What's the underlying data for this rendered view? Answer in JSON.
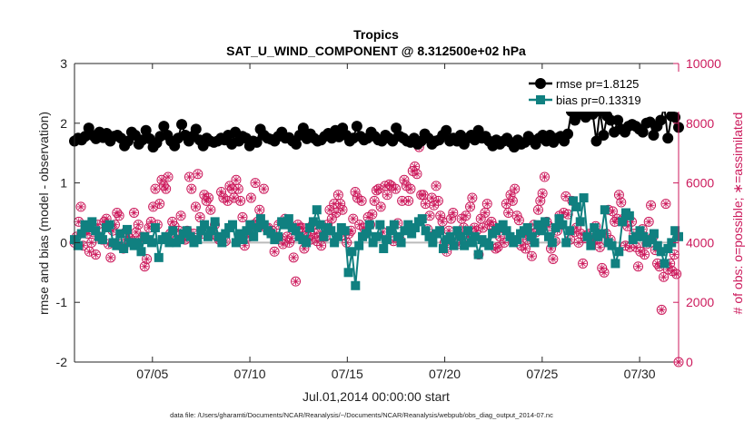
{
  "chart_data": {
    "type": "line",
    "title": "Tropics",
    "subtitle": "SAT_U_WIND_COMPONENT @ 8.312500e+02 hPa",
    "xlabel": "Jul.01,2014 00:00:00 start",
    "ylabel_left": "rmse and bias (model - observation)",
    "ylabel_right": "# of obs: o=possible; ∗=assimilated",
    "footer": "data file: /Users/gharamti/Documents/NCAR/Reanalysis/~/Documents/NCAR/Reanalysis/webpub/obs_diag_output_2014-07.nc",
    "xlim": [
      1,
      32
    ],
    "ylim_left": [
      -2,
      3
    ],
    "ylim_right": [
      0,
      10000
    ],
    "x_ticks": [
      5,
      10,
      15,
      20,
      25,
      30
    ],
    "x_tick_labels": [
      "07/05",
      "07/10",
      "07/15",
      "07/20",
      "07/25",
      "07/30"
    ],
    "y_ticks_left": [
      -2,
      -1,
      0,
      1,
      2,
      3
    ],
    "y_tick_labels_left": [
      "-2",
      "-1",
      "0",
      "1",
      "2",
      "3"
    ],
    "y_ticks_right": [
      0,
      2000,
      4000,
      6000,
      8000,
      10000
    ],
    "y_tick_labels_right": [
      "0",
      "2000",
      "4000",
      "6000",
      "8000",
      "10000"
    ],
    "zero_line": 0,
    "legend": {
      "position": "top-right",
      "entries": [
        "rmse pr=1.8125",
        "bias pr=0.13319"
      ]
    },
    "colors": {
      "rmse": "#000000",
      "bias": "#108080",
      "obs": "#cc1a5c",
      "zero": "#bbbbbb"
    },
    "series": [
      {
        "name": "rmse pr=1.8125",
        "marker": "circle",
        "values": [
          1.7,
          1.75,
          1.72,
          1.78,
          1.92,
          1.8,
          1.74,
          1.85,
          1.76,
          1.83,
          1.7,
          1.78,
          1.8,
          1.75,
          1.62,
          1.7,
          1.85,
          1.8,
          1.65,
          1.72,
          1.88,
          1.74,
          1.6,
          1.67,
          1.78,
          1.95,
          1.8,
          1.7,
          1.62,
          1.75,
          1.98,
          1.8,
          1.7,
          1.78,
          1.9,
          1.72,
          1.62,
          1.75,
          1.7,
          1.68,
          1.7,
          1.75,
          1.72,
          1.8,
          1.65,
          1.85,
          1.7,
          1.78,
          1.75,
          1.62,
          1.7,
          1.68,
          1.9,
          1.8,
          1.75,
          1.73,
          1.7,
          1.78,
          1.85,
          1.75,
          1.76,
          1.7,
          1.65,
          1.8,
          1.92,
          1.74,
          1.82,
          1.75,
          1.7,
          1.72,
          1.78,
          1.83,
          1.75,
          1.88,
          1.77,
          1.92,
          1.8,
          1.7,
          1.75,
          1.95,
          1.78,
          1.72,
          1.75,
          1.85,
          1.78,
          1.72,
          1.7,
          1.8,
          1.75,
          1.7,
          1.92,
          1.78,
          1.75,
          1.7,
          1.68,
          1.75,
          1.65,
          1.7,
          1.82,
          1.75,
          1.65,
          1.7,
          1.72,
          1.8,
          1.88,
          1.7,
          1.75,
          1.7,
          1.8,
          1.65,
          1.75,
          1.8,
          1.72,
          1.88,
          1.75,
          1.78,
          1.7,
          1.62,
          1.72,
          1.65,
          1.7,
          1.75,
          1.68,
          1.6,
          1.72,
          1.65,
          1.68,
          1.78,
          1.72,
          1.65,
          1.75,
          1.8,
          1.7,
          1.8,
          1.68,
          1.75,
          1.78,
          1.7,
          1.82,
          2.2,
          2.05,
          2.15,
          2.28,
          2.1,
          2.2,
          2.15,
          1.7,
          2.2,
          1.8,
          2.12,
          2.05,
          1.85,
          2.05,
          1.9,
          1.85,
          1.95,
          1.98,
          1.95,
          1.9,
          1.85,
          2.0,
          2.02,
          1.8,
          1.95,
          2.05,
          2.28,
          1.75,
          2.12,
          2.1,
          1.93
        ]
      },
      {
        "name": "bias pr=0.13319",
        "marker": "square",
        "values": [
          0.05,
          -0.05,
          0.15,
          0.3,
          0.25,
          0.35,
          0.2,
          0.1,
          0.05,
          0.25,
          0.3,
          0.0,
          -0.05,
          0.15,
          -0.1,
          0.22,
          0.0,
          -0.05,
          0.0,
          -0.15,
          0.1,
          0.05,
          0.0,
          0.25,
          -0.25,
          0.05,
          0.1,
          0.0,
          0.2,
          0.0,
          0.05,
          0.15,
          0.2,
          0.1,
          0.0,
          0.05,
          0.2,
          0.3,
          0.1,
          0.2,
          0.35,
          0.1,
          0.0,
          0.15,
          0.25,
          0.3,
          0.0,
          0.15,
          0.05,
          0.2,
          0.3,
          0.1,
          0.25,
          0.4,
          0.3,
          0.2,
          0.15,
          0.05,
          0.1,
          0.35,
          0.3,
          0.4,
          0.25,
          0.2,
          0.1,
          0.05,
          0.0,
          0.25,
          0.35,
          0.55,
          0.3,
          0.1,
          0.25,
          0.2,
          0.0,
          0.1,
          0.25,
          0.2,
          -0.5,
          -0.15,
          -0.72,
          -0.05,
          0.1,
          0.15,
          0.3,
          0.0,
          0.1,
          0.3,
          -0.1,
          0.05,
          0.2,
          0.3,
          0.1,
          0.0,
          0.2,
          0.3,
          0.15,
          0.25,
          0.35,
          0.4,
          0.2,
          0.1,
          0.0,
          0.15,
          0.2,
          -0.1,
          0.05,
          0.1,
          -0.05,
          0.2,
          0.1,
          -0.05,
          0.2,
          0.0,
          0.1,
          -0.2,
          0.05,
          0.0,
          -0.05,
          0.15,
          0.2,
          0.25,
          0.3,
          0.2,
          0.1,
          0.0,
          0.05,
          0.15,
          0.2,
          0.25,
          0.1,
          0.0,
          0.3,
          0.2,
          0.35,
          0.1,
          0.0,
          0.25,
          0.4,
          0.3,
          0.0,
          0.2,
          0.7,
          0.6,
          0.35,
          0.75,
          0.1,
          -0.05,
          0.25,
          0.1,
          0.15,
          0.55,
          0.0,
          -0.05,
          -0.35,
          -0.15,
          0.35,
          0.5,
          0.45,
          0.05,
          0.1,
          0.2,
          0.1,
          0.0,
          0.05,
          0.15,
          -0.05,
          -0.15,
          -0.35,
          -0.1,
          0.0,
          0.2,
          0.1
        ]
      },
      {
        "name": "# of obs possible/assimilated",
        "marker": "circle-asterisk",
        "axis": "right",
        "values": [
          4000,
          4200,
          4700,
          5200,
          3900,
          4400,
          4300,
          3700,
          4000,
          4350,
          3600,
          4600,
          4200,
          4100,
          4700,
          4800,
          3950,
          3500,
          4400,
          4600,
          5000,
          4900,
          3950,
          3800,
          4350,
          4200,
          4150,
          4050,
          5000,
          4350,
          4600,
          4100,
          4200,
          3200,
          3450,
          4500,
          4700,
          5200,
          5800,
          4600,
          5300,
          6100,
          5900,
          5800,
          6200,
          4300,
          4700,
          4550,
          4100,
          4400,
          4900,
          4200,
          4100,
          4400,
          6200,
          5800,
          4300,
          5200,
          6300,
          4850,
          4300,
          5600,
          5400,
          5500,
          5100,
          4300,
          4600,
          4200,
          4100,
          5700,
          5500,
          4050,
          5400,
          5900,
          5800,
          5500,
          6100,
          5800,
          5400,
          4850,
          3900,
          4350,
          4200,
          5500,
          4600,
          6000,
          4700,
          5100,
          4600,
          5800,
          4500,
          4500,
          4350,
          4400,
          3700,
          4200,
          4600,
          4100,
          3950,
          4800,
          4200,
          4000,
          4150,
          3500,
          2700,
          4600,
          4500,
          4500,
          3800,
          4350,
          4200,
          4100,
          4600,
          4300,
          4050,
          4200,
          3900,
          4500,
          4200,
          4600,
          5100,
          4800,
          5300,
          5000,
          5600,
          5300,
          5100,
          4250,
          4000,
          4300,
          4400,
          4800,
          5700,
          5500,
          4600,
          5400,
          4500,
          4300,
          4850,
          4600,
          4950,
          5400,
          5750,
          5800,
          5200,
          4350,
          5900,
          5600,
          5950,
          5900,
          4050,
          5800,
          4650,
          4100,
          5400,
          6100,
          5900,
          5400,
          5800,
          6400,
          6550,
          6300,
          7200,
          5600,
          5600,
          5300,
          4450,
          4900,
          5500,
          5250,
          5900,
          5400,
          4900,
          4700,
          4000,
          3700,
          4400,
          4800,
          5000,
          4000,
          3950,
          4300,
          4800,
          4500,
          4900,
          4200,
          5200,
          5500,
          4500,
          4400,
          3600,
          4800,
          4500,
          5000,
          5300,
          4600,
          4700,
          4550,
          3800,
          3850,
          4200,
          4500,
          4000,
          5300,
          5000,
          5600,
          5400,
          5800,
          4900,
          4750,
          3900,
          4250,
          3800,
          4100,
          4300,
          3550,
          4600,
          4350,
          5100,
          5400,
          5650,
          6200,
          4700,
          4550,
          3800,
          3450,
          4050,
          4400,
          4900,
          4600,
          5000,
          5550,
          4950,
          4100,
          5400,
          4350,
          4500,
          4000,
          4300,
          3300,
          4150,
          4250,
          4300,
          4000,
          4100,
          4550,
          4100,
          3850,
          3150,
          3000,
          4300,
          5100,
          4100,
          5050,
          4700,
          4800,
          5600,
          5350,
          4800,
          3900,
          4550,
          3850,
          4700,
          4300,
          3850,
          3200,
          3700,
          4450,
          3600,
          3950,
          4700,
          5250,
          4200,
          3750,
          3300,
          3200,
          1750,
          2850,
          5300,
          3100,
          3300,
          3050,
          3600,
          2950,
          0
        ]
      }
    ]
  }
}
